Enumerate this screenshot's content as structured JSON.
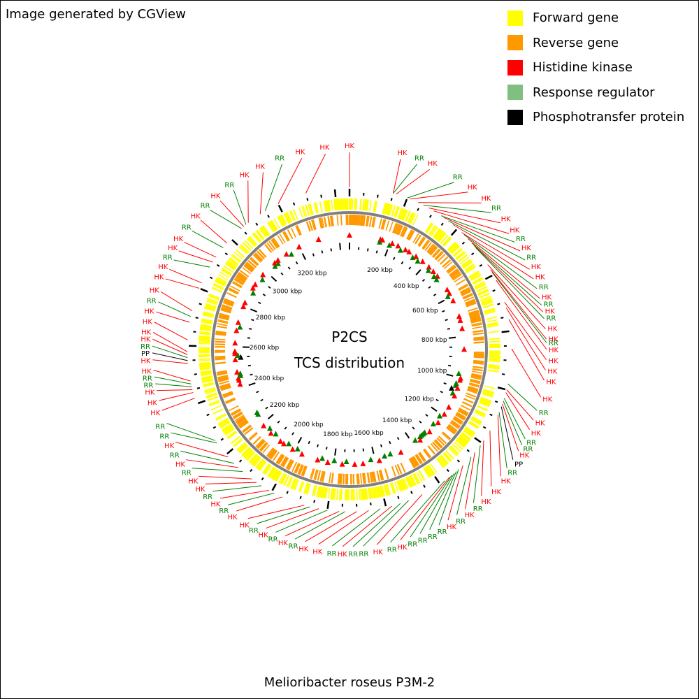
{
  "credit": "Image generated by CGView",
  "legend": [
    {
      "label": "Forward gene",
      "color": "#ffff00"
    },
    {
      "label": "Reverse gene",
      "color": "#ff9900"
    },
    {
      "label": "Histidine kinase",
      "color": "#ff0000"
    },
    {
      "label": "Response regulator",
      "color": "#7fbf7f"
    },
    {
      "label": "Phosphotransfer protein",
      "color": "#000000"
    }
  ],
  "center": {
    "line1": "P2CS",
    "line2": "TCS distribution"
  },
  "organism": "Melioribacter roseus P3M-2",
  "genome_kbp": 3450,
  "ruler_labels": [
    "200 kbp",
    "400 kbp",
    "600 kbp",
    "800 kbp",
    "1000 kbp",
    "1200 kbp",
    "1400 kbp",
    "1600 kbp",
    "1800 kbp",
    "2000 kbp",
    "2200 kbp",
    "2400 kbp",
    "2600 kbp",
    "2800 kbp",
    "3000 kbp",
    "3200 kbp"
  ],
  "feature_colors": {
    "HK": "#ff0000",
    "RR": "#008000",
    "PP": "#000000"
  },
  "features": [
    {
      "type": "HK",
      "kbp": 0,
      "labelAngle": 0
    },
    {
      "type": "HK",
      "kbp": 150,
      "labelAngle": 15
    },
    {
      "type": "RR",
      "kbp": 150,
      "labelAngle": 20
    },
    {
      "type": "HK",
      "kbp": 160,
      "labelAngle": 24
    },
    {
      "type": "RR",
      "kbp": 200,
      "labelAngle": 32
    },
    {
      "type": "HK",
      "kbp": 210,
      "labelAngle": 37
    },
    {
      "type": "HK",
      "kbp": 240,
      "labelAngle": 42
    },
    {
      "type": "RR",
      "kbp": 260,
      "labelAngle": 46
    },
    {
      "type": "HK",
      "kbp": 280,
      "labelAngle": 50
    },
    {
      "type": "HK",
      "kbp": 300,
      "labelAngle": 54
    },
    {
      "type": "RR",
      "kbp": 330,
      "labelAngle": 57
    },
    {
      "type": "HK",
      "kbp": 340,
      "labelAngle": 60
    },
    {
      "type": "RR",
      "kbp": 360,
      "labelAngle": 63
    },
    {
      "type": "HK",
      "kbp": 380,
      "labelAngle": 66
    },
    {
      "type": "HK",
      "kbp": 420,
      "labelAngle": 69
    },
    {
      "type": "RR",
      "kbp": 430,
      "labelAngle": 72
    },
    {
      "type": "HK",
      "kbp": 450,
      "labelAngle": 75
    },
    {
      "type": "RR",
      "kbp": 470,
      "labelAngle": 77
    },
    {
      "type": "HK",
      "kbp": 480,
      "labelAngle": 79
    },
    {
      "type": "RR",
      "kbp": 490,
      "labelAngle": 81
    },
    {
      "type": "HK",
      "kbp": 560,
      "labelAngle": 84
    },
    {
      "type": "HK",
      "kbp": 580,
      "labelAngle": 87
    },
    {
      "type": "RR",
      "kbp": 590,
      "labelAngle": 88
    },
    {
      "type": "HK",
      "kbp": 620,
      "labelAngle": 90
    },
    {
      "type": "HK",
      "kbp": 700,
      "labelAngle": 93
    },
    {
      "type": "HK",
      "kbp": 720,
      "labelAngle": 96
    },
    {
      "type": "HK",
      "kbp": 760,
      "labelAngle": 99
    },
    {
      "type": "HK",
      "kbp": 860,
      "labelAngle": 104
    },
    {
      "type": "RR",
      "kbp": 980,
      "labelAngle": 108
    },
    {
      "type": "HK",
      "kbp": 1000,
      "labelAngle": 111
    },
    {
      "type": "HK",
      "kbp": 1010,
      "labelAngle": 114
    },
    {
      "type": "RR",
      "kbp": 1030,
      "labelAngle": 117
    },
    {
      "type": "RR",
      "kbp": 1040,
      "labelAngle": 119
    },
    {
      "type": "HK",
      "kbp": 1050,
      "labelAngle": 121
    },
    {
      "type": "PP",
      "kbp": 1060,
      "labelAngle": 124
    },
    {
      "type": "RR",
      "kbp": 1080,
      "labelAngle": 127
    },
    {
      "type": "HK",
      "kbp": 1090,
      "labelAngle": 130
    },
    {
      "type": "HK",
      "kbp": 1150,
      "labelAngle": 134
    },
    {
      "type": "HK",
      "kbp": 1190,
      "labelAngle": 138
    },
    {
      "type": "RR",
      "kbp": 1210,
      "labelAngle": 141
    },
    {
      "type": "HK",
      "kbp": 1240,
      "labelAngle": 144
    },
    {
      "type": "RR",
      "kbp": 1260,
      "labelAngle": 147
    },
    {
      "type": "HK",
      "kbp": 1300,
      "labelAngle": 150
    },
    {
      "type": "RR",
      "kbp": 1320,
      "labelAngle": 153
    },
    {
      "type": "RR",
      "kbp": 1330,
      "labelAngle": 156
    },
    {
      "type": "RR",
      "kbp": 1340,
      "labelAngle": 159
    },
    {
      "type": "RR",
      "kbp": 1350,
      "labelAngle": 162
    },
    {
      "type": "HK",
      "kbp": 1360,
      "labelAngle": 165
    },
    {
      "type": "RR",
      "kbp": 1380,
      "labelAngle": 168
    },
    {
      "type": "HK",
      "kbp": 1470,
      "labelAngle": 172
    },
    {
      "type": "RR",
      "kbp": 1520,
      "labelAngle": 176
    },
    {
      "type": "RR",
      "kbp": 1550,
      "labelAngle": 179
    },
    {
      "type": "HK",
      "kbp": 1580,
      "labelAngle": 182
    },
    {
      "type": "RR",
      "kbp": 1620,
      "labelAngle": 185
    },
    {
      "type": "HK",
      "kbp": 1660,
      "labelAngle": 189
    },
    {
      "type": "HK",
      "kbp": 1700,
      "labelAngle": 193
    },
    {
      "type": "RR",
      "kbp": 1740,
      "labelAngle": 196
    },
    {
      "type": "HK",
      "kbp": 1760,
      "labelAngle": 199
    },
    {
      "type": "RR",
      "kbp": 1800,
      "labelAngle": 202
    },
    {
      "type": "HK",
      "kbp": 1830,
      "labelAngle": 205
    },
    {
      "type": "RR",
      "kbp": 1860,
      "labelAngle": 208
    },
    {
      "type": "HK",
      "kbp": 1880,
      "labelAngle": 211
    },
    {
      "type": "HK",
      "kbp": 1960,
      "labelAngle": 215
    },
    {
      "type": "RR",
      "kbp": 1990,
      "labelAngle": 218
    },
    {
      "type": "HK",
      "kbp": 2010,
      "labelAngle": 221
    },
    {
      "type": "RR",
      "kbp": 2040,
      "labelAngle": 224
    },
    {
      "type": "HK",
      "kbp": 2060,
      "labelAngle": 227
    },
    {
      "type": "HK",
      "kbp": 2080,
      "labelAngle": 230
    },
    {
      "type": "RR",
      "kbp": 2120,
      "labelAngle": 233
    },
    {
      "type": "HK",
      "kbp": 2140,
      "labelAngle": 236
    },
    {
      "type": "RR",
      "kbp": 2160,
      "labelAngle": 239
    },
    {
      "type": "HK",
      "kbp": 2190,
      "labelAngle": 242
    },
    {
      "type": "RR",
      "kbp": 2250,
      "labelAngle": 245
    },
    {
      "type": "RR",
      "kbp": 2260,
      "labelAngle": 248
    },
    {
      "type": "HK",
      "kbp": 2420,
      "labelAngle": 252
    },
    {
      "type": "HK",
      "kbp": 2440,
      "labelAngle": 255
    },
    {
      "type": "HK",
      "kbp": 2450,
      "labelAngle": 258
    },
    {
      "type": "RR",
      "kbp": 2460,
      "labelAngle": 260
    },
    {
      "type": "RR",
      "kbp": 2470,
      "labelAngle": 262
    },
    {
      "type": "HK",
      "kbp": 2480,
      "labelAngle": 264
    },
    {
      "type": "HK",
      "kbp": 2540,
      "labelAngle": 267
    },
    {
      "type": "PP",
      "kbp": 2550,
      "labelAngle": 269
    },
    {
      "type": "RR",
      "kbp": 2560,
      "labelAngle": 271
    },
    {
      "type": "HK",
      "kbp": 2570,
      "labelAngle": 273
    },
    {
      "type": "HK",
      "kbp": 2580,
      "labelAngle": 275
    },
    {
      "type": "HK",
      "kbp": 2620,
      "labelAngle": 278
    },
    {
      "type": "HK",
      "kbp": 2680,
      "labelAngle": 281
    },
    {
      "type": "RR",
      "kbp": 2700,
      "labelAngle": 284
    },
    {
      "type": "HK",
      "kbp": 2720,
      "labelAngle": 287
    },
    {
      "type": "HK",
      "kbp": 2800,
      "labelAngle": 291
    },
    {
      "type": "HK",
      "kbp": 2820,
      "labelAngle": 294
    },
    {
      "type": "RR",
      "kbp": 2880,
      "labelAngle": 297
    },
    {
      "type": "HK",
      "kbp": 2900,
      "labelAngle": 300
    },
    {
      "type": "HK",
      "kbp": 2920,
      "labelAngle": 303
    },
    {
      "type": "RR",
      "kbp": 2960,
      "labelAngle": 307
    },
    {
      "type": "HK",
      "kbp": 2980,
      "labelAngle": 311
    },
    {
      "type": "RR",
      "kbp": 3050,
      "labelAngle": 315
    },
    {
      "type": "HK",
      "kbp": 3060,
      "labelAngle": 319
    },
    {
      "type": "RR",
      "kbp": 3070,
      "labelAngle": 324
    },
    {
      "type": "HK",
      "kbp": 3080,
      "labelAngle": 329
    },
    {
      "type": "HK",
      "kbp": 3130,
      "labelAngle": 334
    },
    {
      "type": "RR",
      "kbp": 3150,
      "labelAngle": 340
    },
    {
      "type": "HK",
      "kbp": 3200,
      "labelAngle": 346
    },
    {
      "type": "HK",
      "kbp": 3300,
      "labelAngle": 353
    }
  ]
}
